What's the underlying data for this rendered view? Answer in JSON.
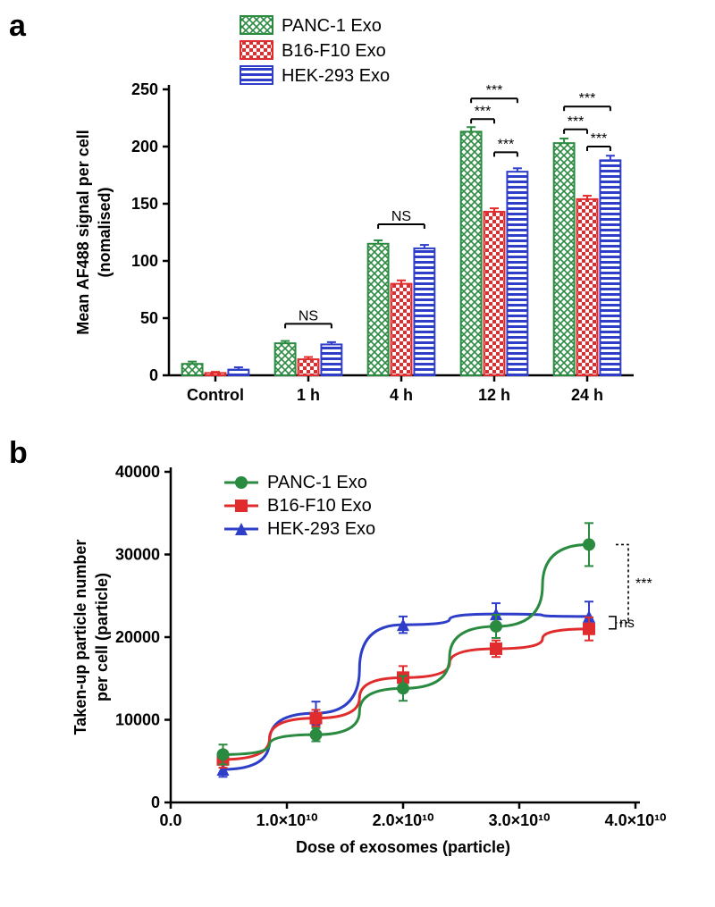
{
  "panel_a": {
    "label": "a",
    "type": "bar",
    "legend": [
      {
        "label": "PANC-1 Exo",
        "fill": "#2a8a3f",
        "pattern": "crosshatch"
      },
      {
        "label": "B16-F10 Exo",
        "fill": "#e02c2c",
        "pattern": "check"
      },
      {
        "label": "HEK-293 Exo",
        "fill": "#2e3ec9",
        "pattern": "hlines"
      }
    ],
    "y_axis": {
      "label_line1": "Mean AF488 signal per cell",
      "label_line2": "(nomalised)",
      "min": 0,
      "max": 250,
      "step": 50,
      "label_fontsize": 20
    },
    "x_axis": {
      "categories": [
        "Control",
        "1 h",
        "4 h",
        "12 h",
        "24 h"
      ],
      "label_fontsize": 20
    },
    "series": {
      "panc1": {
        "color": "#2a8a3f",
        "pattern": "crosshatch",
        "values": [
          10,
          28,
          115,
          213,
          203
        ],
        "err": [
          2,
          2,
          3,
          4,
          4
        ]
      },
      "b16f10": {
        "color": "#e02c2c",
        "pattern": "check",
        "values": [
          2,
          14,
          80,
          143,
          154
        ],
        "err": [
          1,
          2,
          3,
          3,
          3
        ]
      },
      "hek293": {
        "color": "#2e3ec9",
        "pattern": "hlines",
        "values": [
          5,
          27,
          111,
          178,
          188
        ],
        "err": [
          2,
          2,
          3,
          3,
          4
        ]
      }
    },
    "sig": [
      {
        "group": "1 h",
        "label": "NS",
        "y": 45,
        "span": "outer"
      },
      {
        "group": "4 h",
        "label": "NS",
        "y": 132,
        "span": "outer"
      },
      {
        "group": "12 h",
        "label": "***",
        "y": 242,
        "span": "outer"
      },
      {
        "group": "12 h",
        "label": "***",
        "y": 224,
        "span": "left"
      },
      {
        "group": "12 h",
        "label": "***",
        "y": 195,
        "span": "right"
      },
      {
        "group": "24 h",
        "label": "***",
        "y": 235,
        "span": "outer"
      },
      {
        "group": "24 h",
        "label": "***",
        "y": 215,
        "span": "left"
      },
      {
        "group": "24 h",
        "label": "***",
        "y": 200,
        "span": "right"
      }
    ],
    "bar_width": 0.22,
    "group_gap": 0.35,
    "background": "#ffffff",
    "axis_color": "#000000",
    "axis_width": 2.5
  },
  "panel_b": {
    "label": "b",
    "type": "line",
    "legend": [
      {
        "label": "PANC-1 Exo",
        "color": "#2a8a3f",
        "marker": "circle"
      },
      {
        "label": "B16-F10 Exo",
        "color": "#e02c2c",
        "marker": "square"
      },
      {
        "label": "HEK-293 Exo",
        "color": "#2e3ec9",
        "marker": "triangle"
      }
    ],
    "y_axis": {
      "label_line1": "Taken-up particle number",
      "label_line2": "per cell (particle)",
      "min": 0,
      "max": 40000,
      "step": 10000,
      "label_fontsize": 20
    },
    "x_axis": {
      "label": "Dose of exosomes (particle)",
      "min": 0,
      "max": 40000000000.0,
      "ticks": [
        0,
        10000000000.0,
        20000000000.0,
        30000000000.0,
        40000000000.0
      ],
      "tick_labels": [
        "0.0",
        "1.0×10¹⁰",
        "2.0×10¹⁰",
        "3.0×10¹⁰",
        "4.0×10¹⁰"
      ]
    },
    "series": {
      "panc1": {
        "color": "#2a8a3f",
        "marker": "circle",
        "x": [
          4500000000.0,
          12500000000.0,
          20000000000.0,
          28000000000.0,
          36000000000.0
        ],
        "y": [
          5800,
          8200,
          13800,
          21300,
          31200
        ],
        "err": [
          1200,
          800,
          1500,
          1400,
          2600
        ]
      },
      "b16f10": {
        "color": "#e02c2c",
        "marker": "square",
        "x": [
          4500000000.0,
          12500000000.0,
          20000000000.0,
          28000000000.0,
          36000000000.0
        ],
        "y": [
          5200,
          10200,
          15100,
          18600,
          21000
        ],
        "err": [
          1000,
          1000,
          1400,
          1000,
          1400
        ]
      },
      "hek293": {
        "color": "#2e3ec9",
        "marker": "triangle",
        "x": [
          4500000000.0,
          12500000000.0,
          20000000000.0,
          28000000000.0,
          36000000000.0
        ],
        "y": [
          4000,
          10800,
          21500,
          22800,
          22500
        ],
        "err": [
          900,
          1400,
          1000,
          1300,
          1800
        ]
      }
    },
    "annotations": {
      "bracket_sig": "***",
      "bracket_ns": "ns"
    },
    "line_width": 3,
    "marker_size": 7,
    "background": "#ffffff",
    "axis_color": "#000000",
    "axis_width": 2.5
  }
}
